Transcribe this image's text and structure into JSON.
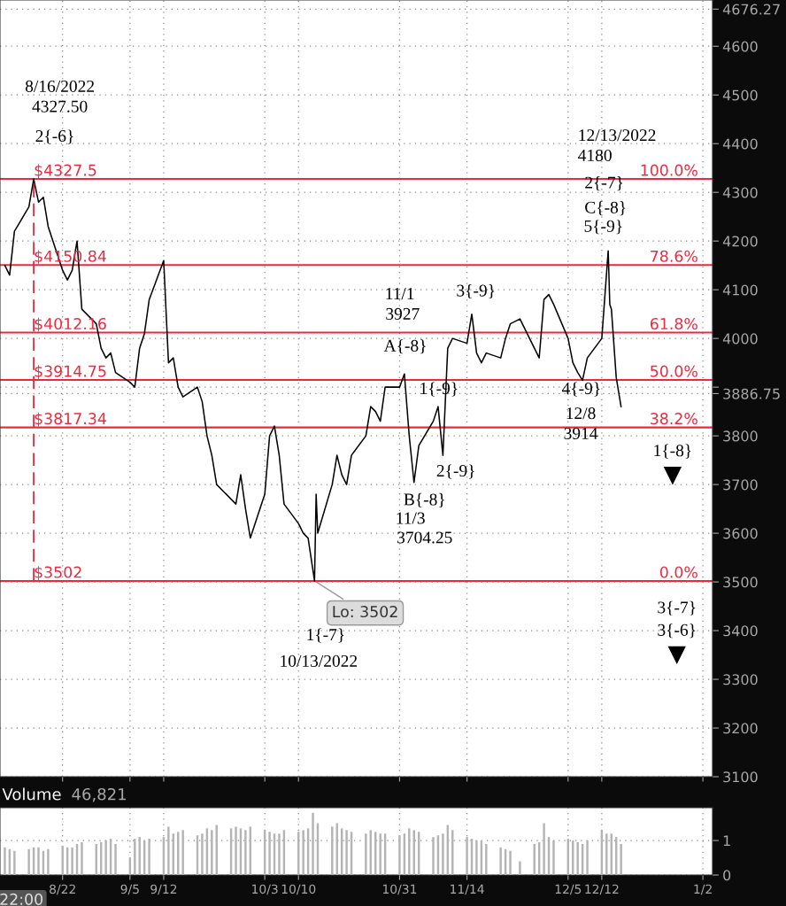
{
  "chart_data": [
    {
      "type": "line",
      "color": "#000000",
      "x": [
        "2022-08-10",
        "2022-08-11",
        "2022-08-12",
        "2022-08-15",
        "2022-08-16",
        "2022-08-17",
        "2022-08-18",
        "2022-08-19",
        "2022-08-22",
        "2022-08-23",
        "2022-08-24",
        "2022-08-25",
        "2022-08-26",
        "2022-08-29",
        "2022-08-30",
        "2022-08-31",
        "2022-09-01",
        "2022-09-02",
        "2022-09-05",
        "2022-09-06",
        "2022-09-07",
        "2022-09-08",
        "2022-09-09",
        "2022-09-12",
        "2022-09-13",
        "2022-09-14",
        "2022-09-15",
        "2022-09-16",
        "2022-09-19",
        "2022-09-20",
        "2022-09-21",
        "2022-09-22",
        "2022-09-23",
        "2022-09-26",
        "2022-09-27",
        "2022-09-28",
        "2022-09-29",
        "2022-09-30",
        "2022-10-03",
        "2022-10-04",
        "2022-10-05",
        "2022-10-06",
        "2022-10-07",
        "2022-10-10",
        "2022-10-11",
        "2022-10-12",
        "2022-10-13T08:00",
        "2022-10-13T16:00",
        "2022-10-14",
        "2022-10-17",
        "2022-10-18",
        "2022-10-19",
        "2022-10-20",
        "2022-10-21",
        "2022-10-24",
        "2022-10-25",
        "2022-10-26",
        "2022-10-27",
        "2022-10-28",
        "2022-10-31",
        "2022-11-01",
        "2022-11-02",
        "2022-11-03",
        "2022-11-04",
        "2022-11-07",
        "2022-11-08",
        "2022-11-09",
        "2022-11-10",
        "2022-11-11",
        "2022-11-14",
        "2022-11-15",
        "2022-11-16",
        "2022-11-17",
        "2022-11-18",
        "2022-11-21",
        "2022-11-22",
        "2022-11-23",
        "2022-11-25",
        "2022-11-28",
        "2022-11-29",
        "2022-11-30",
        "2022-12-01",
        "2022-12-02",
        "2022-12-05",
        "2022-12-06",
        "2022-12-07",
        "2022-12-08",
        "2022-12-09",
        "2022-12-12",
        "2022-12-13T08:00",
        "2022-12-13T16:00",
        "2022-12-14",
        "2022-12-15",
        "2022-12-16"
      ],
      "values": [
        4150,
        4130,
        4220,
        4270,
        4327.5,
        4280,
        4290,
        4230,
        4140,
        4120,
        4140,
        4200,
        4060,
        4030,
        3980,
        3960,
        3970,
        3930,
        3910,
        3900,
        3980,
        4010,
        4080,
        4160,
        3950,
        3960,
        3900,
        3880,
        3900,
        3870,
        3800,
        3760,
        3700,
        3670,
        3660,
        3720,
        3650,
        3590,
        3680,
        3800,
        3820,
        3760,
        3660,
        3620,
        3600,
        3590,
        3502,
        3680,
        3600,
        3700,
        3760,
        3720,
        3700,
        3760,
        3800,
        3860,
        3850,
        3830,
        3900,
        3900,
        3927,
        3800,
        3704.25,
        3780,
        3830,
        3860,
        3760,
        3980,
        4000,
        3990,
        4050,
        3970,
        3950,
        3970,
        3960,
        4000,
        4030,
        4040,
        3980,
        3960,
        4080,
        4090,
        4070,
        4000,
        3950,
        3930,
        3914,
        3960,
        4000,
        4180,
        4070,
        4060,
        3920,
        3860
      ],
      "xlim": [
        "2022-08-09",
        "2023-01-04"
      ],
      "ylim": [
        3100,
        4695
      ],
      "xticks": [
        {
          "value": "2022-08-22",
          "label": null
        },
        {
          "value": "2022-09-05",
          "label": null
        },
        {
          "value": "2022-09-12",
          "label": null
        },
        {
          "value": "2022-10-03",
          "label": null
        },
        {
          "value": "2022-10-10",
          "label": null
        },
        {
          "value": "2022-10-31",
          "label": null
        },
        {
          "value": "2022-11-14",
          "label": null
        },
        {
          "value": "2022-12-05",
          "label": null
        },
        {
          "value": "2022-12-12",
          "label": null
        },
        {
          "value": "2023-01-02",
          "label": null
        }
      ],
      "yticks": [
        3100,
        3200,
        3300,
        3400,
        3500,
        3600,
        3700,
        3800,
        {
          "value": 3886.75,
          "label": "3886.75"
        },
        {
          "value": 3900,
          "label": null
        },
        4000,
        4100,
        4200,
        4300,
        4400,
        4500,
        4600,
        {
          "value": 4676.27,
          "label": "4676.27"
        }
      ],
      "tick_labels": "y",
      "grid": true,
      "ref_lines": [
        {
          "axis": "y",
          "value": 4327.5,
          "label": "$4327.5",
          "color": "#f0283c"
        },
        {
          "axis": "y",
          "value": 4150.84,
          "label": "$4150.84",
          "color": "#f0283c"
        },
        {
          "axis": "y",
          "value": 4012.16,
          "label": "$4012.16",
          "color": "#f0283c"
        },
        {
          "axis": "y",
          "value": 3914.75,
          "label": "$3914.75",
          "color": "#f0283c"
        },
        {
          "axis": "y",
          "value": 3817.34,
          "label": "$3817.34",
          "color": "#f0283c"
        },
        {
          "axis": "y",
          "value": 3502,
          "label": "$3502",
          "color": "#f0283c"
        },
        {
          "axis": "x",
          "value": "2022-08-16",
          "label": null,
          "color": "#f0283c",
          "line_style": "dashed"
        }
      ],
      "annotations": [
        "8/16/2022",
        "4327.50",
        "2{-6}",
        "12/13/2022",
        "4180",
        "2{-7}",
        "C{-8}",
        "5{-9}",
        "11/1",
        "3927",
        "3{-9}",
        "A{-8}",
        "1{-9}",
        "2{-9}",
        "B{-8}",
        "11/3",
        "3704.25",
        "4{-9}",
        "12/8",
        "3914",
        "1{-8}",
        "3{-7}",
        "3{-6}",
        "1{-7}",
        "10/13/2022",
        {
          "text": "Lo: 3502",
          "x": "2022-10-13T08:00",
          "y": 3502
        },
        {
          "text": "100.0%",
          "y": 4327.5
        },
        {
          "text": "78.6%",
          "y": 4150.84
        },
        {
          "text": "61.8%",
          "y": 4012.16
        },
        {
          "text": "50.0%",
          "y": 3914.75
        },
        {
          "text": "38.2%",
          "y": 3817.34
        },
        {
          "text": "0.0%",
          "y": 3502
        }
      ]
    },
    {
      "type": "bar",
      "color": "#b4b4b4",
      "title": "Volume",
      "subtitle": "46,821",
      "x": [
        "2022-08-10",
        "2022-08-11",
        "2022-08-12",
        "2022-08-15",
        "2022-08-16",
        "2022-08-17",
        "2022-08-18",
        "2022-08-19",
        "2022-08-22",
        "2022-08-23",
        "2022-08-24",
        "2022-08-25",
        "2022-08-26",
        "2022-08-29",
        "2022-08-30",
        "2022-08-31",
        "2022-09-01",
        "2022-09-02",
        "2022-09-05",
        "2022-09-06",
        "2022-09-07",
        "2022-09-08",
        "2022-09-09",
        "2022-09-12",
        "2022-09-13",
        "2022-09-14",
        "2022-09-15",
        "2022-09-16",
        "2022-09-19",
        "2022-09-20",
        "2022-09-21",
        "2022-09-22",
        "2022-09-23",
        "2022-09-26",
        "2022-09-27",
        "2022-09-28",
        "2022-09-29",
        "2022-09-30",
        "2022-10-03",
        "2022-10-04",
        "2022-10-05",
        "2022-10-06",
        "2022-10-07",
        "2022-10-10",
        "2022-10-11",
        "2022-10-12",
        "2022-10-13",
        "2022-10-14",
        "2022-10-17",
        "2022-10-18",
        "2022-10-19",
        "2022-10-20",
        "2022-10-21",
        "2022-10-24",
        "2022-10-25",
        "2022-10-26",
        "2022-10-27",
        "2022-10-28",
        "2022-10-31",
        "2022-11-01",
        "2022-11-02",
        "2022-11-03",
        "2022-11-04",
        "2022-11-07",
        "2022-11-08",
        "2022-11-09",
        "2022-11-10",
        "2022-11-11",
        "2022-11-14",
        "2022-11-15",
        "2022-11-16",
        "2022-11-17",
        "2022-11-18",
        "2022-11-21",
        "2022-11-22",
        "2022-11-23",
        "2022-11-25",
        "2022-11-28",
        "2022-11-29",
        "2022-11-30",
        "2022-12-01",
        "2022-12-02",
        "2022-12-05",
        "2022-12-06",
        "2022-12-07",
        "2022-12-08",
        "2022-12-09",
        "2022-12-12",
        "2022-12-13",
        "2022-12-14",
        "2022-12-15",
        "2022-12-16"
      ],
      "values": [
        0.8,
        0.75,
        0.7,
        0.75,
        0.8,
        0.8,
        0.7,
        0.75,
        0.85,
        0.8,
        0.8,
        0.9,
        0.95,
        0.9,
        0.95,
        1.0,
        1.05,
        0.9,
        0.5,
        1.05,
        1.1,
        1.0,
        1.05,
        1.1,
        1.4,
        1.2,
        1.25,
        1.3,
        1.15,
        1.2,
        1.35,
        1.3,
        1.45,
        1.35,
        1.4,
        1.35,
        1.3,
        1.4,
        1.3,
        1.25,
        1.2,
        1.2,
        1.3,
        1.25,
        1.3,
        1.35,
        1.8,
        1.5,
        1.4,
        1.5,
        1.35,
        1.3,
        1.25,
        1.2,
        1.3,
        1.25,
        1.2,
        1.2,
        1.15,
        1.2,
        1.35,
        1.3,
        1.25,
        1.1,
        1.15,
        1.2,
        1.45,
        1.3,
        1.1,
        1.05,
        1.0,
        1.0,
        0.9,
        0.8,
        0.75,
        0.7,
        0.4,
        0.9,
        0.95,
        1.5,
        1.1,
        1.0,
        1.05,
        1.0,
        0.95,
        0.9,
        1.0,
        1.3,
        1.2,
        1.2,
        1.1,
        0.9
      ],
      "xlim": [
        "2022-08-09",
        "2023-01-04"
      ],
      "ylim": [
        0,
        1.95
      ],
      "xticks": [
        {
          "value": "2022-08-22",
          "label": "8/22"
        },
        {
          "value": "2022-09-05",
          "label": "9/5"
        },
        {
          "value": "2022-09-12",
          "label": "9/12"
        },
        {
          "value": "2022-10-03",
          "label": "10/3"
        },
        {
          "value": "2022-10-10",
          "label": "10/10"
        },
        {
          "value": "2022-10-31",
          "label": "10/31"
        },
        {
          "value": "2022-11-14",
          "label": "11/14"
        },
        {
          "value": "2022-12-05",
          "label": "12/5"
        },
        {
          "value": "2022-12-12",
          "label": "12/12"
        },
        {
          "value": "2023-01-02",
          "label": "1/2"
        }
      ],
      "yticks": [
        0,
        1
      ],
      "grid": true,
      "annotations": [
        "22:00"
      ]
    }
  ]
}
